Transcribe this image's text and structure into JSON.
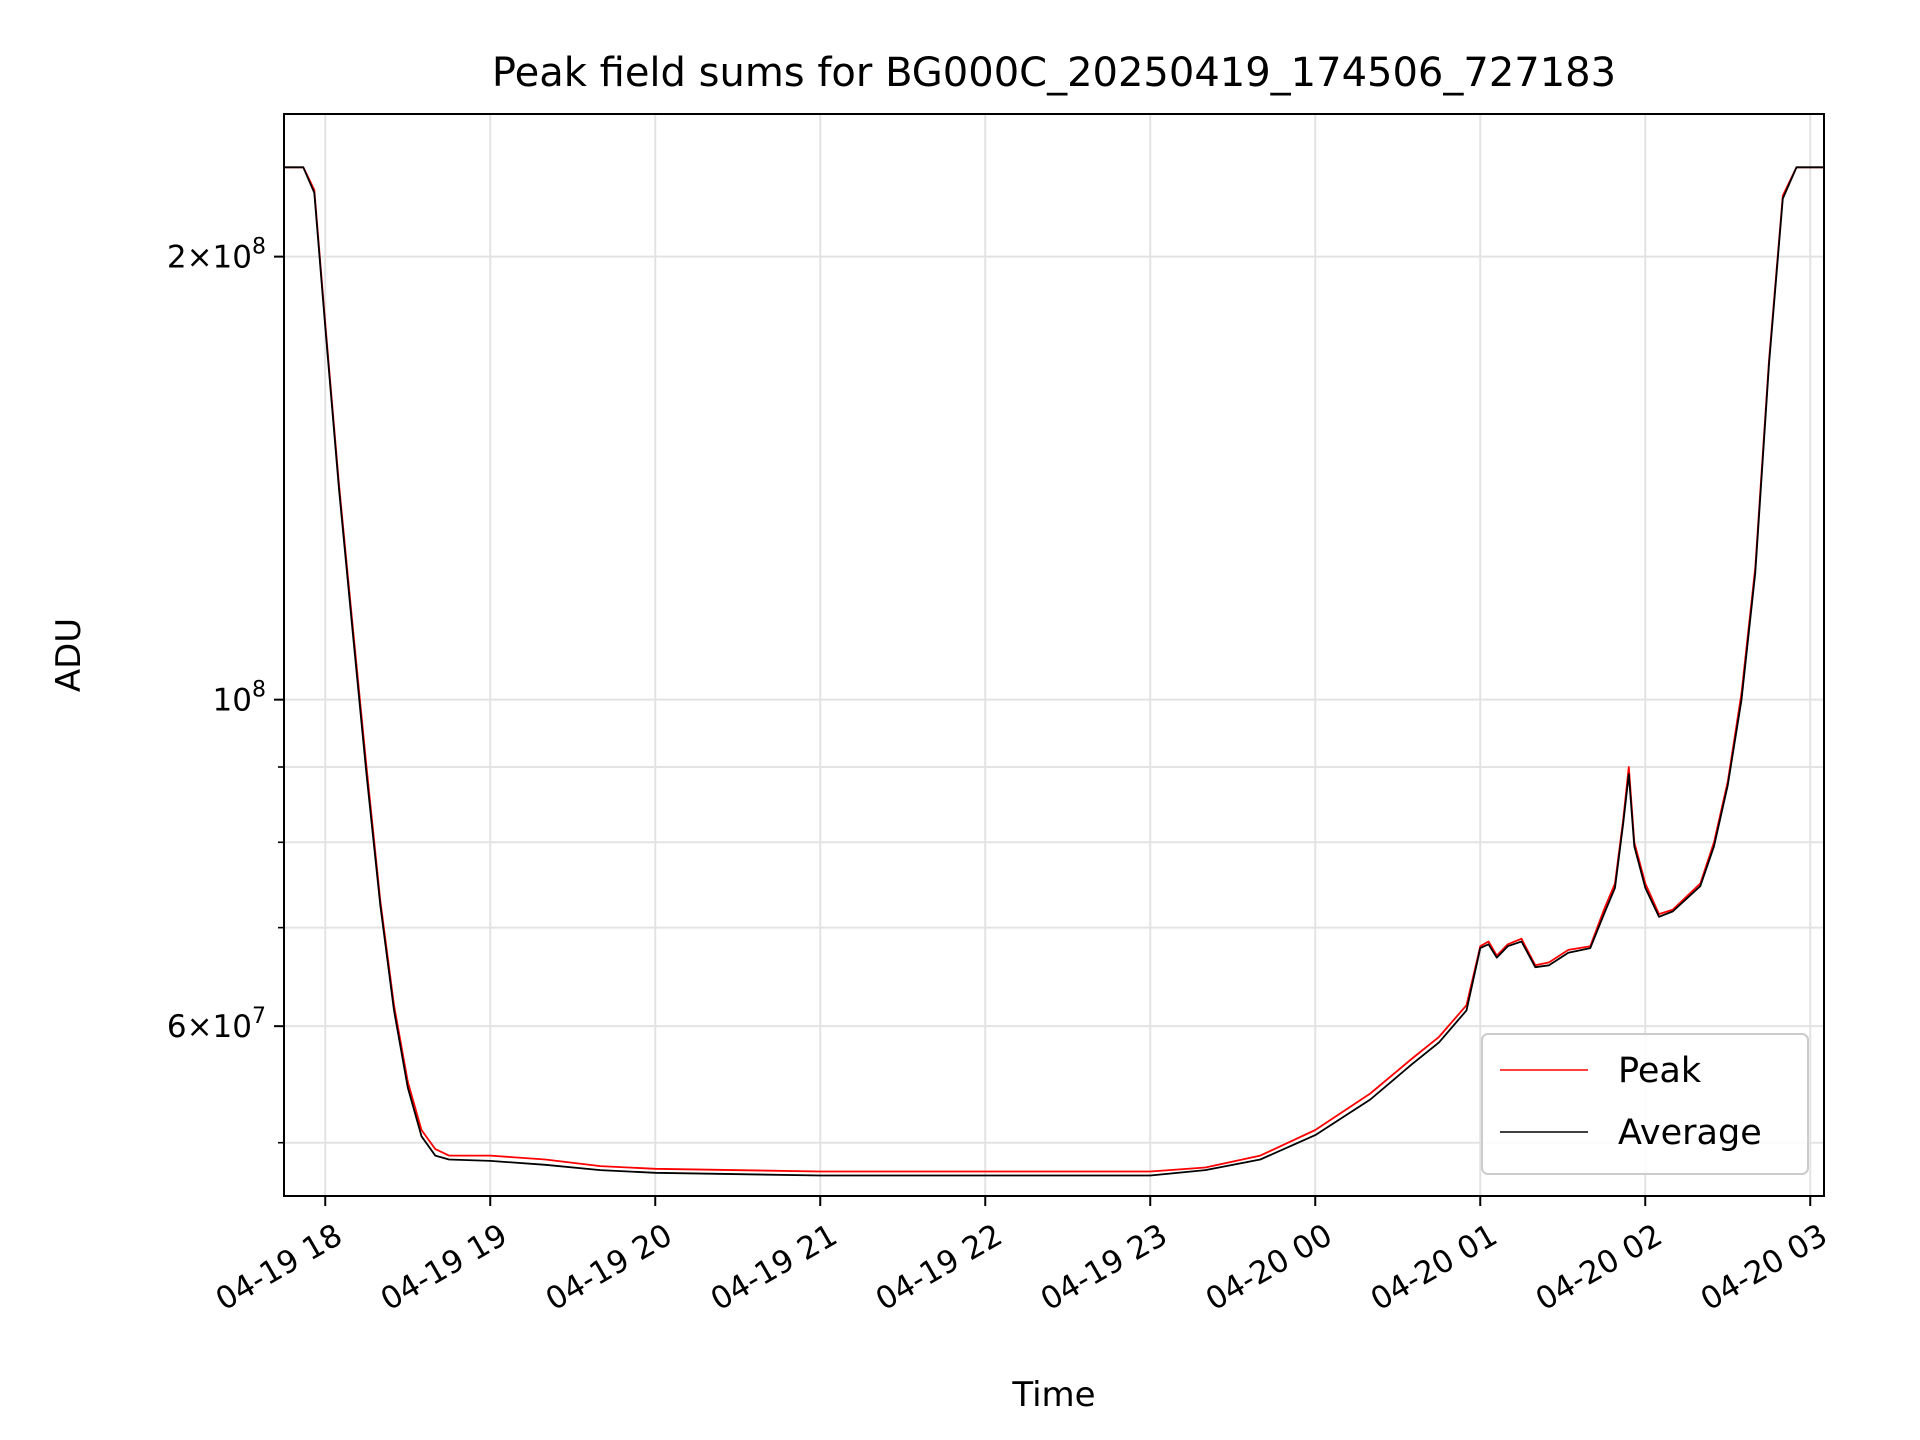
{
  "chart_data": {
    "type": "line",
    "title": "Peak field sums for BG000C_20250419_174506_727183",
    "xlabel": "Time",
    "ylabel": "ADU",
    "y_scale": "log",
    "ylim": [
      46000000,
      250000000
    ],
    "xlim": [
      "2025-04-19 17:45",
      "2025-04-20 03:05"
    ],
    "grid": true,
    "legend_position": "lower-right",
    "x_ticks": [
      {
        "value": "2025-04-19 18:00",
        "label": "04-19 18"
      },
      {
        "value": "2025-04-19 19:00",
        "label": "04-19 19"
      },
      {
        "value": "2025-04-19 20:00",
        "label": "04-19 20"
      },
      {
        "value": "2025-04-19 21:00",
        "label": "04-19 21"
      },
      {
        "value": "2025-04-19 22:00",
        "label": "04-19 22"
      },
      {
        "value": "2025-04-19 23:00",
        "label": "04-19 23"
      },
      {
        "value": "2025-04-20 00:00",
        "label": "04-20 00"
      },
      {
        "value": "2025-04-20 01:00",
        "label": "04-20 01"
      },
      {
        "value": "2025-04-20 02:00",
        "label": "04-20 02"
      },
      {
        "value": "2025-04-20 03:00",
        "label": "04-20 03"
      }
    ],
    "y_major_ticks": [
      {
        "value": 60000000,
        "mantissa": "6",
        "exponent": "7",
        "times": "×10"
      },
      {
        "value": 100000000,
        "mantissa": "",
        "exponent": "8",
        "times": "10"
      },
      {
        "value": 200000000,
        "mantissa": "2",
        "exponent": "8",
        "times": "×10"
      }
    ],
    "y_minor_ticks": [
      50000000,
      70000000,
      80000000,
      90000000
    ],
    "series": [
      {
        "name": "Peak",
        "color": "#ff0000",
        "points": [
          [
            "2025-04-19 17:45",
            230000000
          ],
          [
            "2025-04-19 17:52",
            230000000
          ],
          [
            "2025-04-19 17:56",
            222000000
          ],
          [
            "2025-04-19 18:00",
            180000000
          ],
          [
            "2025-04-19 18:05",
            140000000
          ],
          [
            "2025-04-19 18:10",
            112000000
          ],
          [
            "2025-04-19 18:15",
            90000000
          ],
          [
            "2025-04-19 18:20",
            73000000
          ],
          [
            "2025-04-19 18:25",
            62000000
          ],
          [
            "2025-04-19 18:30",
            55000000
          ],
          [
            "2025-04-19 18:35",
            51000000
          ],
          [
            "2025-04-19 18:40",
            49500000
          ],
          [
            "2025-04-19 18:45",
            49000000
          ],
          [
            "2025-04-19 19:00",
            49000000
          ],
          [
            "2025-04-19 19:20",
            48700000
          ],
          [
            "2025-04-19 19:40",
            48200000
          ],
          [
            "2025-04-19 20:00",
            48000000
          ],
          [
            "2025-04-19 21:00",
            47800000
          ],
          [
            "2025-04-19 22:00",
            47800000
          ],
          [
            "2025-04-19 22:30",
            47800000
          ],
          [
            "2025-04-19 23:00",
            47800000
          ],
          [
            "2025-04-19 23:20",
            48100000
          ],
          [
            "2025-04-19 23:40",
            49000000
          ],
          [
            "2025-04-20 00:00",
            51000000
          ],
          [
            "2025-04-20 00:20",
            54000000
          ],
          [
            "2025-04-20 00:35",
            57000000
          ],
          [
            "2025-04-20 00:45",
            59000000
          ],
          [
            "2025-04-20 00:55",
            62000000
          ],
          [
            "2025-04-20 01:00",
            68000000
          ],
          [
            "2025-04-20 01:03",
            68500000
          ],
          [
            "2025-04-20 01:06",
            67000000
          ],
          [
            "2025-04-20 01:10",
            68200000
          ],
          [
            "2025-04-20 01:15",
            68800000
          ],
          [
            "2025-04-20 01:20",
            66000000
          ],
          [
            "2025-04-20 01:25",
            66300000
          ],
          [
            "2025-04-20 01:32",
            67600000
          ],
          [
            "2025-04-20 01:40",
            68000000
          ],
          [
            "2025-04-20 01:45",
            72000000
          ],
          [
            "2025-04-20 01:49",
            75000000
          ],
          [
            "2025-04-20 01:52",
            83000000
          ],
          [
            "2025-04-20 01:54",
            90000000
          ],
          [
            "2025-04-20 01:56",
            80000000
          ],
          [
            "2025-04-20 02:00",
            75000000
          ],
          [
            "2025-04-20 02:05",
            71500000
          ],
          [
            "2025-04-20 02:10",
            72000000
          ],
          [
            "2025-04-20 02:20",
            75000000
          ],
          [
            "2025-04-20 02:25",
            80000000
          ],
          [
            "2025-04-20 02:30",
            88000000
          ],
          [
            "2025-04-20 02:35",
            101000000
          ],
          [
            "2025-04-20 02:40",
            123000000
          ],
          [
            "2025-04-20 02:45",
            170000000
          ],
          [
            "2025-04-20 02:50",
            220000000
          ],
          [
            "2025-04-20 02:55",
            230000000
          ],
          [
            "2025-04-20 03:05",
            230000000
          ]
        ]
      },
      {
        "name": "Average",
        "color": "#000000",
        "points": [
          [
            "2025-04-19 17:45",
            230000000
          ],
          [
            "2025-04-19 17:52",
            230000000
          ],
          [
            "2025-04-19 17:56",
            221000000
          ],
          [
            "2025-04-19 18:00",
            179000000
          ],
          [
            "2025-04-19 18:05",
            139000000
          ],
          [
            "2025-04-19 18:10",
            111000000
          ],
          [
            "2025-04-19 18:15",
            89000000
          ],
          [
            "2025-04-19 18:20",
            72500000
          ],
          [
            "2025-04-19 18:25",
            61500000
          ],
          [
            "2025-04-19 18:30",
            54500000
          ],
          [
            "2025-04-19 18:35",
            50500000
          ],
          [
            "2025-04-19 18:40",
            49000000
          ],
          [
            "2025-04-19 18:45",
            48700000
          ],
          [
            "2025-04-19 19:00",
            48600000
          ],
          [
            "2025-04-19 19:20",
            48300000
          ],
          [
            "2025-04-19 19:40",
            47900000
          ],
          [
            "2025-04-19 20:00",
            47700000
          ],
          [
            "2025-04-19 21:00",
            47500000
          ],
          [
            "2025-04-19 22:00",
            47500000
          ],
          [
            "2025-04-19 22:30",
            47500000
          ],
          [
            "2025-04-19 23:00",
            47500000
          ],
          [
            "2025-04-19 23:20",
            47900000
          ],
          [
            "2025-04-19 23:40",
            48700000
          ],
          [
            "2025-04-20 00:00",
            50600000
          ],
          [
            "2025-04-20 00:20",
            53500000
          ],
          [
            "2025-04-20 00:35",
            56500000
          ],
          [
            "2025-04-20 00:45",
            58500000
          ],
          [
            "2025-04-20 00:55",
            61500000
          ],
          [
            "2025-04-20 01:00",
            67800000
          ],
          [
            "2025-04-20 01:03",
            68200000
          ],
          [
            "2025-04-20 01:06",
            66800000
          ],
          [
            "2025-04-20 01:10",
            68000000
          ],
          [
            "2025-04-20 01:15",
            68500000
          ],
          [
            "2025-04-20 01:20",
            65800000
          ],
          [
            "2025-04-20 01:25",
            66000000
          ],
          [
            "2025-04-20 01:32",
            67300000
          ],
          [
            "2025-04-20 01:40",
            67800000
          ],
          [
            "2025-04-20 01:45",
            71500000
          ],
          [
            "2025-04-20 01:49",
            74500000
          ],
          [
            "2025-04-20 01:52",
            82500000
          ],
          [
            "2025-04-20 01:54",
            89000000
          ],
          [
            "2025-04-20 01:56",
            79500000
          ],
          [
            "2025-04-20 02:00",
            74500000
          ],
          [
            "2025-04-20 02:05",
            71200000
          ],
          [
            "2025-04-20 02:10",
            71800000
          ],
          [
            "2025-04-20 02:20",
            74700000
          ],
          [
            "2025-04-20 02:25",
            79500000
          ],
          [
            "2025-04-20 02:30",
            87500000
          ],
          [
            "2025-04-20 02:35",
            100000000
          ],
          [
            "2025-04-20 02:40",
            122000000
          ],
          [
            "2025-04-20 02:45",
            169000000
          ],
          [
            "2025-04-20 02:50",
            219000000
          ],
          [
            "2025-04-20 02:55",
            230000000
          ],
          [
            "2025-04-20 03:05",
            230000000
          ]
        ]
      }
    ]
  }
}
